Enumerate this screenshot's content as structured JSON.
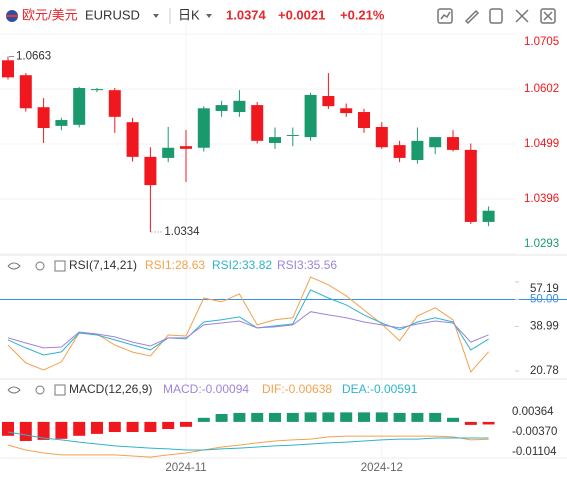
{
  "header": {
    "pair": "欧元/美元",
    "symbol": "EURUSD",
    "period": "日K",
    "price": "1.0374",
    "change": "+0.0021",
    "change_pct": "+0.21%"
  },
  "chart_data": [
    {
      "type": "candlestick",
      "categories": [
        null,
        null,
        null,
        null,
        null,
        null,
        null,
        null,
        null,
        null,
        "2024-11",
        null,
        null,
        null,
        null,
        null,
        null,
        null,
        null,
        null,
        null,
        "2024-12",
        null,
        null,
        null,
        null,
        null,
        null
      ],
      "open": [
        1.0656,
        1.0628,
        1.0568,
        1.0533,
        1.0535,
        1.06,
        1.06,
        1.054,
        1.0475,
        1.0473,
        1.0495,
        1.0492,
        1.0561,
        1.0559,
        1.0572,
        1.0501,
        1.0515,
        1.0512,
        1.0589,
        1.0566,
        1.0559,
        1.0531,
        1.0497,
        1.0469,
        1.0493,
        1.0512,
        1.0488,
        1.0353
      ],
      "high": [
        1.0663,
        1.0632,
        1.0585,
        1.0548,
        1.0606,
        1.0604,
        1.0604,
        1.0548,
        1.0493,
        1.0531,
        1.0525,
        1.057,
        1.058,
        1.06,
        1.0578,
        1.053,
        1.053,
        1.0595,
        1.0632,
        1.0575,
        1.0565,
        1.054,
        1.0505,
        1.053,
        1.0512,
        1.0525,
        1.05,
        1.0382
      ],
      "low": [
        1.062,
        1.056,
        1.0501,
        1.0525,
        1.053,
        1.0596,
        1.052,
        1.0466,
        1.0334,
        1.0465,
        1.0428,
        1.0485,
        1.055,
        1.055,
        1.05,
        1.049,
        1.0495,
        1.0505,
        1.0565,
        1.055,
        1.052,
        1.049,
        1.0465,
        1.0462,
        1.048,
        1.0485,
        1.0349,
        1.0345
      ],
      "close": [
        1.0624,
        1.0566,
        1.0529,
        1.0544,
        1.0604,
        1.0602,
        1.055,
        1.0475,
        1.0422,
        1.0492,
        1.049,
        1.0566,
        1.0572,
        1.058,
        1.0505,
        1.0512,
        1.0516,
        1.0591,
        1.057,
        1.0557,
        1.0529,
        1.0493,
        1.0473,
        1.0505,
        1.0512,
        1.0488,
        1.0353,
        1.0374
      ],
      "up_color": "#1a9a6c",
      "down_color": "#f0181e",
      "ylim": [
        1.0291,
        1.0724
      ],
      "yticks": [
        1.0705,
        1.0602,
        1.0499,
        1.0396,
        1.0293
      ]
    },
    {
      "type": "line",
      "title": "RSI(7,14,21)",
      "series": [
        {
          "name": "RSI1:28.63",
          "color": "#f2a24e",
          "values": [
            31.4,
            24.1,
            21.2,
            24.5,
            36.3,
            35.9,
            31.4,
            28.5,
            26.9,
            35.5,
            35.1,
            50.6,
            49.0,
            52.3,
            39.6,
            41.7,
            42.5,
            59.2,
            56.0,
            51.5,
            45.7,
            40.0,
            33.1,
            43.3,
            46.6,
            41.7,
            20.4,
            28.63
          ]
        },
        {
          "name": "RSI2:33.82",
          "color": "#2fb4cc",
          "values": [
            33.5,
            30.2,
            27.3,
            28.6,
            36.3,
            35.5,
            33.5,
            31.4,
            29.4,
            34.3,
            33.9,
            40.8,
            41.7,
            42.9,
            38.4,
            39.2,
            40.0,
            53.9,
            50.6,
            47.8,
            43.7,
            40.4,
            37.6,
            40.8,
            42.5,
            40.8,
            29.4,
            33.82
          ]
        },
        {
          "name": "RSI3:35.56",
          "color": "#9f84dc",
          "values": [
            34.3,
            32.2,
            30.2,
            30.6,
            36.7,
            35.9,
            34.7,
            32.6,
            31.0,
            34.3,
            34.3,
            39.6,
            40.4,
            41.2,
            38.4,
            38.8,
            39.6,
            45.0,
            43.7,
            42.5,
            40.8,
            39.6,
            38.4,
            40.0,
            41.2,
            40.4,
            32.6,
            35.56
          ]
        }
      ],
      "reference_line": {
        "value": 50,
        "color": "#3a8ee6"
      },
      "ylim": [
        19.55,
        59.6
      ],
      "yticks": [
        57.19,
        {
          "value": 50,
          "label": "50.00"
        },
        38.99,
        20.78
      ]
    },
    {
      "type": "macd",
      "title": "MACD(12,26,9)",
      "histogram": {
        "name": "MACD:-0.00094",
        "color": "#9f84dc",
        "up_color": "#1a9a6c",
        "down_color": "#f0181e",
        "values": [
          -0.0051,
          -0.007,
          -0.0066,
          -0.0062,
          -0.0051,
          -0.0044,
          -0.0037,
          -0.0037,
          -0.0037,
          -0.0026,
          -0.0018,
          0.0015,
          0.0029,
          0.0033,
          0.0033,
          0.0033,
          0.0033,
          0.0035,
          0.0035,
          0.0035,
          0.0035,
          0.0035,
          0.0033,
          0.0033,
          0.0033,
          0.0015,
          -0.0011,
          -0.00094
        ]
      },
      "series": [
        {
          "name": "DIF:-0.00638",
          "color": "#f2a24e",
          "values": [
            -0.0085,
            -0.0103,
            -0.0114,
            -0.0121,
            -0.0121,
            -0.0121,
            -0.0121,
            -0.0125,
            -0.0129,
            -0.0121,
            -0.0114,
            -0.0103,
            -0.0092,
            -0.0085,
            -0.0077,
            -0.007,
            -0.0066,
            -0.0063,
            -0.0055,
            -0.0052,
            -0.0052,
            -0.0052,
            -0.0052,
            -0.0052,
            -0.0052,
            -0.0055,
            -0.0066,
            -0.00638
          ]
        },
        {
          "name": "DEA:-0.00591",
          "color": "#2fb4cc",
          "values": [
            -0.0037,
            -0.0048,
            -0.0059,
            -0.0066,
            -0.0074,
            -0.0081,
            -0.0088,
            -0.0092,
            -0.0096,
            -0.0099,
            -0.0103,
            -0.0103,
            -0.0099,
            -0.0096,
            -0.0092,
            -0.0088,
            -0.0085,
            -0.0081,
            -0.0077,
            -0.0074,
            -0.007,
            -0.0066,
            -0.0063,
            -0.0063,
            -0.0059,
            -0.0059,
            -0.0059,
            -0.00591
          ]
        }
      ],
      "ylim": [
        -0.01471,
        0.00804
      ],
      "yticks": [
        0.00364,
        {
          "value": -0.0037,
          "label": "-0.00370"
        },
        -0.01104
      ]
    }
  ]
}
